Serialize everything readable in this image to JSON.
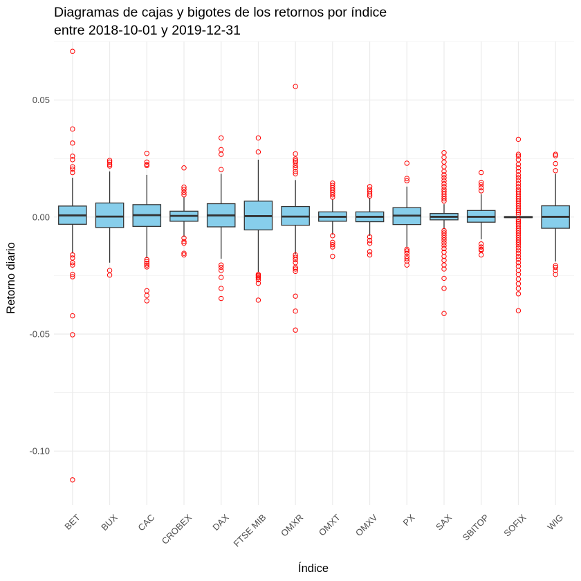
{
  "chart_data": {
    "type": "box",
    "title": [
      "Diagramas de cajas y bigotes de los retornos por índice",
      "entre 2018-10-01 y 2019-12-31"
    ],
    "xlabel": "Índice",
    "ylabel": "Retorno diario",
    "ylim": [
      -0.123,
      0.075
    ],
    "y_ticks": [
      0.05,
      0.0,
      -0.05,
      -0.1
    ],
    "y_tick_labels": [
      "0.05",
      "0.00",
      "-0.05",
      "-0.10"
    ],
    "grid": true,
    "legend": "none",
    "box_fill": "#87ceeb",
    "box_stroke": "#333333",
    "outlier_color": "#ff0000",
    "categories": [
      "BET",
      "BUX",
      "CAC",
      "CROBEX",
      "DAX",
      "FTSE MIB",
      "OMXR",
      "OMXT",
      "OMXV",
      "PX",
      "SAX",
      "SBITOP",
      "SOFIX",
      "WIG"
    ],
    "boxes": [
      {
        "name": "BET",
        "q1": -0.0031,
        "median": 0.0007,
        "q3": 0.0047,
        "whisker_low": -0.0155,
        "whisker_high": 0.0168,
        "outliers": [
          0.0708,
          0.0376,
          0.0316,
          0.026,
          0.0245,
          0.0215,
          0.0205,
          0.019,
          -0.0162,
          -0.0175,
          -0.0195,
          -0.0205,
          -0.0245,
          -0.0255,
          -0.0422,
          -0.0503,
          -0.1123
        ]
      },
      {
        "name": "BUX",
        "q1": -0.0045,
        "median": 0.0002,
        "q3": 0.006,
        "whisker_low": -0.0195,
        "whisker_high": 0.0195,
        "outliers": [
          0.0242,
          0.0235,
          0.0225,
          0.0218,
          -0.0228,
          -0.0248
        ]
      },
      {
        "name": "CAC",
        "q1": -0.004,
        "median": 0.0008,
        "q3": 0.0053,
        "whisker_low": -0.0175,
        "whisker_high": 0.018,
        "outliers": [
          0.0272,
          0.0235,
          0.0225,
          0.022,
          -0.0182,
          -0.019,
          -0.0198,
          -0.0205,
          -0.0213,
          -0.0315,
          -0.0335,
          -0.0358
        ]
      },
      {
        "name": "CROBEX",
        "q1": -0.0018,
        "median": 0.0005,
        "q3": 0.0025,
        "whisker_low": -0.0085,
        "whisker_high": 0.0085,
        "outliers": [
          0.021,
          0.0128,
          0.0118,
          0.0105,
          0.0095,
          -0.009,
          -0.0105,
          -0.0112,
          -0.0155,
          -0.0162
        ]
      },
      {
        "name": "DAX",
        "q1": -0.0042,
        "median": 0.0007,
        "q3": 0.0057,
        "whisker_low": -0.0178,
        "whisker_high": 0.0185,
        "outliers": [
          0.0338,
          0.0288,
          0.0268,
          0.0203,
          -0.0205,
          -0.0215,
          -0.0228,
          -0.0258,
          -0.0305,
          -0.0348
        ]
      },
      {
        "name": "FTSE MIB",
        "q1": -0.0055,
        "median": 0.0004,
        "q3": 0.0068,
        "whisker_low": -0.0235,
        "whisker_high": 0.0245,
        "outliers": [
          0.0338,
          0.0278,
          -0.0245,
          -0.025,
          -0.0255,
          -0.026,
          -0.0268,
          -0.0283,
          -0.0355
        ]
      },
      {
        "name": "OMXR",
        "q1": -0.0035,
        "median": 0.0002,
        "q3": 0.0045,
        "whisker_low": -0.0158,
        "whisker_high": 0.0158,
        "outliers": [
          0.0558,
          0.027,
          0.0248,
          0.024,
          0.0232,
          0.022,
          0.021,
          0.0195,
          0.0185,
          -0.0162,
          -0.0172,
          -0.0182,
          -0.0195,
          -0.0215,
          -0.0222,
          -0.0232,
          -0.0338,
          -0.0402,
          -0.0483
        ]
      },
      {
        "name": "OMXT",
        "q1": -0.0018,
        "median": 0.0001,
        "q3": 0.0022,
        "whisker_low": -0.0075,
        "whisker_high": 0.0075,
        "outliers": [
          0.0145,
          0.0135,
          0.0125,
          0.0115,
          0.0105,
          0.0095,
          0.0085,
          -0.008,
          -0.0108,
          -0.0118,
          -0.0128,
          -0.0168
        ]
      },
      {
        "name": "OMXV",
        "q1": -0.002,
        "median": 0.0001,
        "q3": 0.0022,
        "whisker_low": -0.008,
        "whisker_high": 0.008,
        "outliers": [
          0.013,
          0.0118,
          0.0108,
          0.0098,
          0.009,
          -0.0085,
          -0.01,
          -0.0112,
          -0.0148,
          -0.0162
        ]
      },
      {
        "name": "PX",
        "q1": -0.0032,
        "median": 0.0006,
        "q3": 0.004,
        "whisker_low": -0.0128,
        "whisker_high": 0.013,
        "outliers": [
          0.023,
          0.0165,
          0.0155,
          -0.0138,
          -0.0145,
          -0.0155,
          -0.0168,
          -0.0178,
          -0.0188,
          -0.0205
        ]
      },
      {
        "name": "SAX",
        "q1": -0.0012,
        "median": 0.0001,
        "q3": 0.0015,
        "whisker_low": -0.0052,
        "whisker_high": 0.0055,
        "outliers": [
          0.0275,
          0.0255,
          0.0235,
          0.0215,
          0.0195,
          0.018,
          0.0168,
          0.0155,
          0.0142,
          0.013,
          0.0118,
          0.0108,
          0.0098,
          0.0088,
          0.0078,
          0.0068,
          -0.0058,
          -0.0068,
          -0.0078,
          -0.0088,
          -0.0098,
          -0.011,
          -0.0122,
          -0.0135,
          -0.015,
          -0.0168,
          -0.0185,
          -0.0205,
          -0.0222,
          -0.0262,
          -0.0305,
          -0.0412
        ]
      },
      {
        "name": "SBITOP",
        "q1": -0.0022,
        "median": 0.0001,
        "q3": 0.0028,
        "whisker_low": -0.0095,
        "whisker_high": 0.0098,
        "outliers": [
          0.019,
          0.0148,
          0.0138,
          0.0125,
          0.0112,
          -0.0115,
          -0.0128,
          -0.0138,
          -0.0142,
          -0.0162
        ]
      },
      {
        "name": "SOFIX",
        "q1": -0.0002,
        "median": 0.0,
        "q3": 0.0002,
        "whisker_low": -0.0005,
        "whisker_high": 0.0005,
        "outliers": [
          0.0332,
          0.0268,
          0.026,
          0.0245,
          0.0225,
          0.021,
          0.0195,
          0.018,
          0.0168,
          0.0155,
          0.0142,
          0.013,
          0.0118,
          0.0108,
          0.0098,
          0.0088,
          0.0078,
          0.0068,
          0.0058,
          0.0048,
          0.0038,
          0.0028,
          0.002,
          0.0012,
          -0.0012,
          -0.002,
          -0.0028,
          -0.0038,
          -0.0048,
          -0.0058,
          -0.0068,
          -0.0078,
          -0.0088,
          -0.0098,
          -0.0108,
          -0.0118,
          -0.013,
          -0.0142,
          -0.0155,
          -0.0168,
          -0.018,
          -0.0195,
          -0.021,
          -0.0228,
          -0.0245,
          -0.0265,
          -0.0285,
          -0.0305,
          -0.0328,
          -0.04
        ]
      },
      {
        "name": "WIG",
        "q1": -0.0048,
        "median": 0.0001,
        "q3": 0.0048,
        "whisker_low": -0.019,
        "whisker_high": 0.0185,
        "outliers": [
          0.0268,
          0.0262,
          0.0228,
          0.0198,
          -0.0208,
          -0.0215,
          -0.0228,
          -0.0245
        ]
      }
    ]
  }
}
